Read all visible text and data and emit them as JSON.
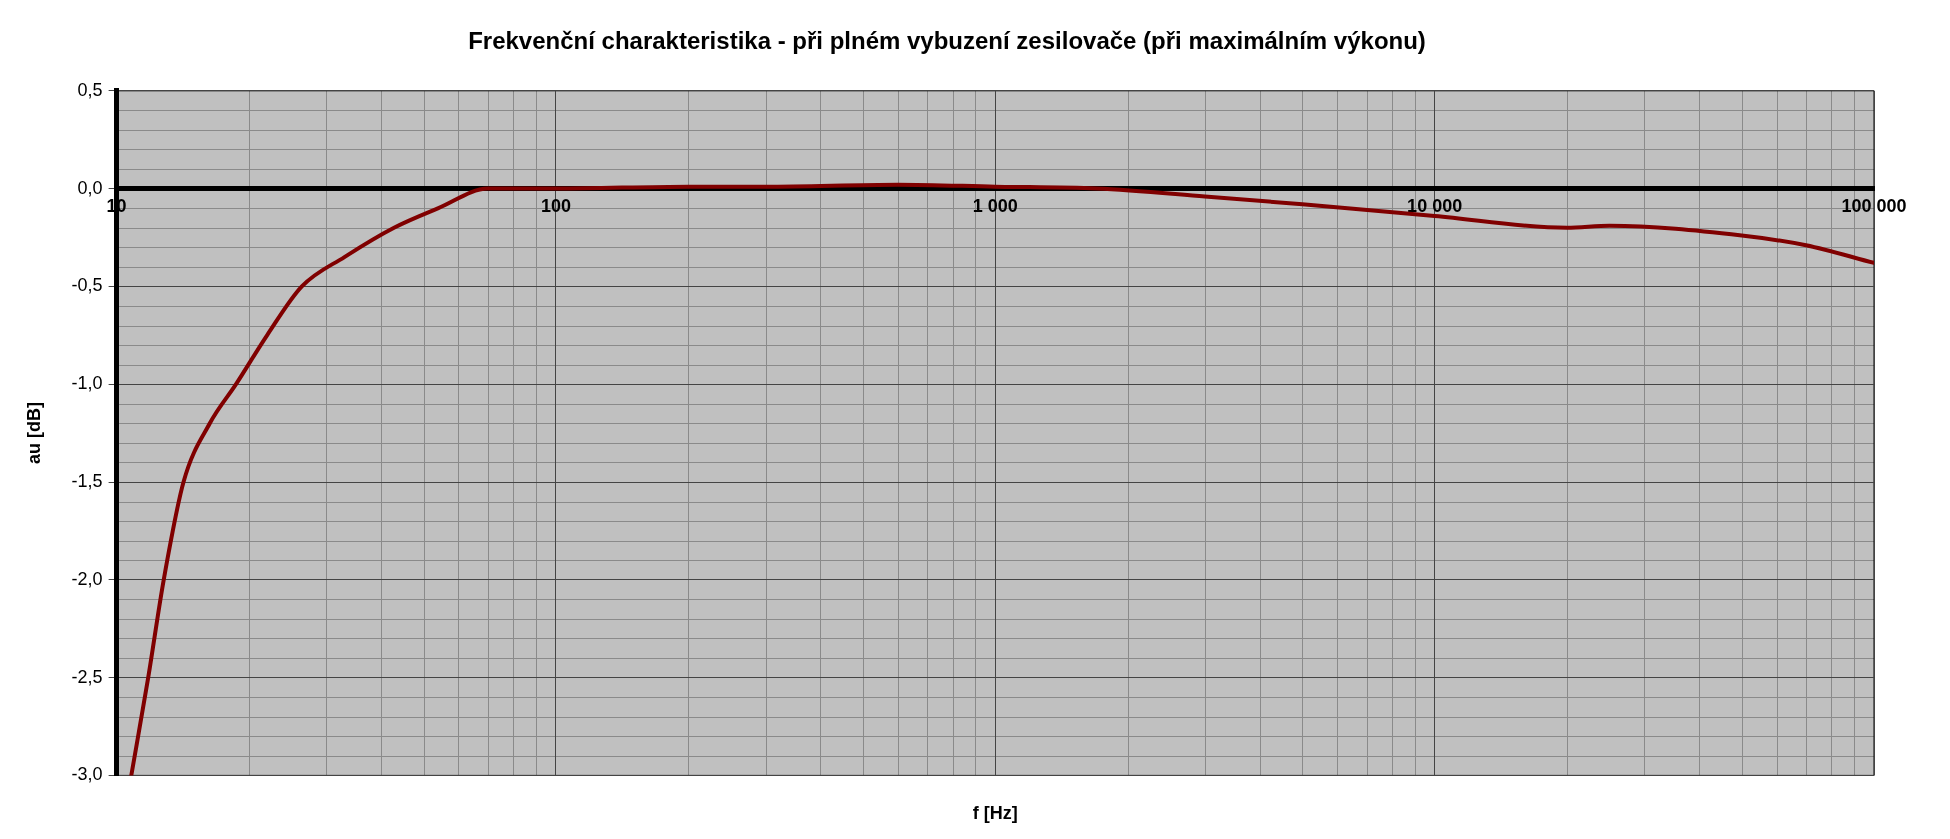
{
  "chart_data": {
    "type": "line",
    "title": "Frekvenční charakteristika - při plném vybuzení zesilovače (při maximálním výkonu)",
    "xlabel": "f [Hz]",
    "ylabel": "au [dB]",
    "series": [
      {
        "color": "#800000",
        "x": [
          10.8,
          11.8,
          12.8,
          14.2,
          16.3,
          18.7,
          22,
          26.4,
          33,
          42.8,
          54,
          70,
          100,
          200,
          300,
          600,
          1000,
          1700,
          3000,
          5000,
          10000,
          20000,
          25000,
          50000,
          70000,
          100000
        ],
        "values": [
          -3.0,
          -2.5,
          -2.0,
          -1.5,
          -1.2,
          -1.0,
          -0.75,
          -0.5,
          -0.35,
          -0.2,
          -0.1,
          0,
          0,
          0.01,
          0.01,
          0.02,
          0.01,
          0,
          -0.04,
          -0.08,
          -0.14,
          -0.2,
          -0.19,
          -0.24,
          -0.29,
          -0.38
        ]
      }
    ],
    "xlim": [
      10,
      100000
    ],
    "ylim": [
      -3.0,
      0.5
    ],
    "xticks": [
      {
        "value": 10,
        "label": "10"
      },
      {
        "value": 100,
        "label": "100"
      },
      {
        "value": 1000,
        "label": "1 000"
      },
      {
        "value": 10000,
        "label": "10 000"
      },
      {
        "value": 100000,
        "label": "100 000"
      }
    ],
    "yticks": [
      {
        "value": -3.0,
        "label": "-3,0"
      },
      {
        "value": -2.5,
        "label": "-2,5"
      },
      {
        "value": -2.0,
        "label": "-2,0"
      },
      {
        "value": -1.5,
        "label": "-1,5"
      },
      {
        "value": -1.0,
        "label": "-1,0"
      },
      {
        "value": -0.5,
        "label": "-0,5"
      },
      {
        "value": 0,
        "label": "0,0"
      },
      {
        "value": 0.5,
        "label": "0,5"
      }
    ],
    "log": "x",
    "grid": true,
    "legend": false,
    "marker": "none",
    "line_style": "solid"
  }
}
